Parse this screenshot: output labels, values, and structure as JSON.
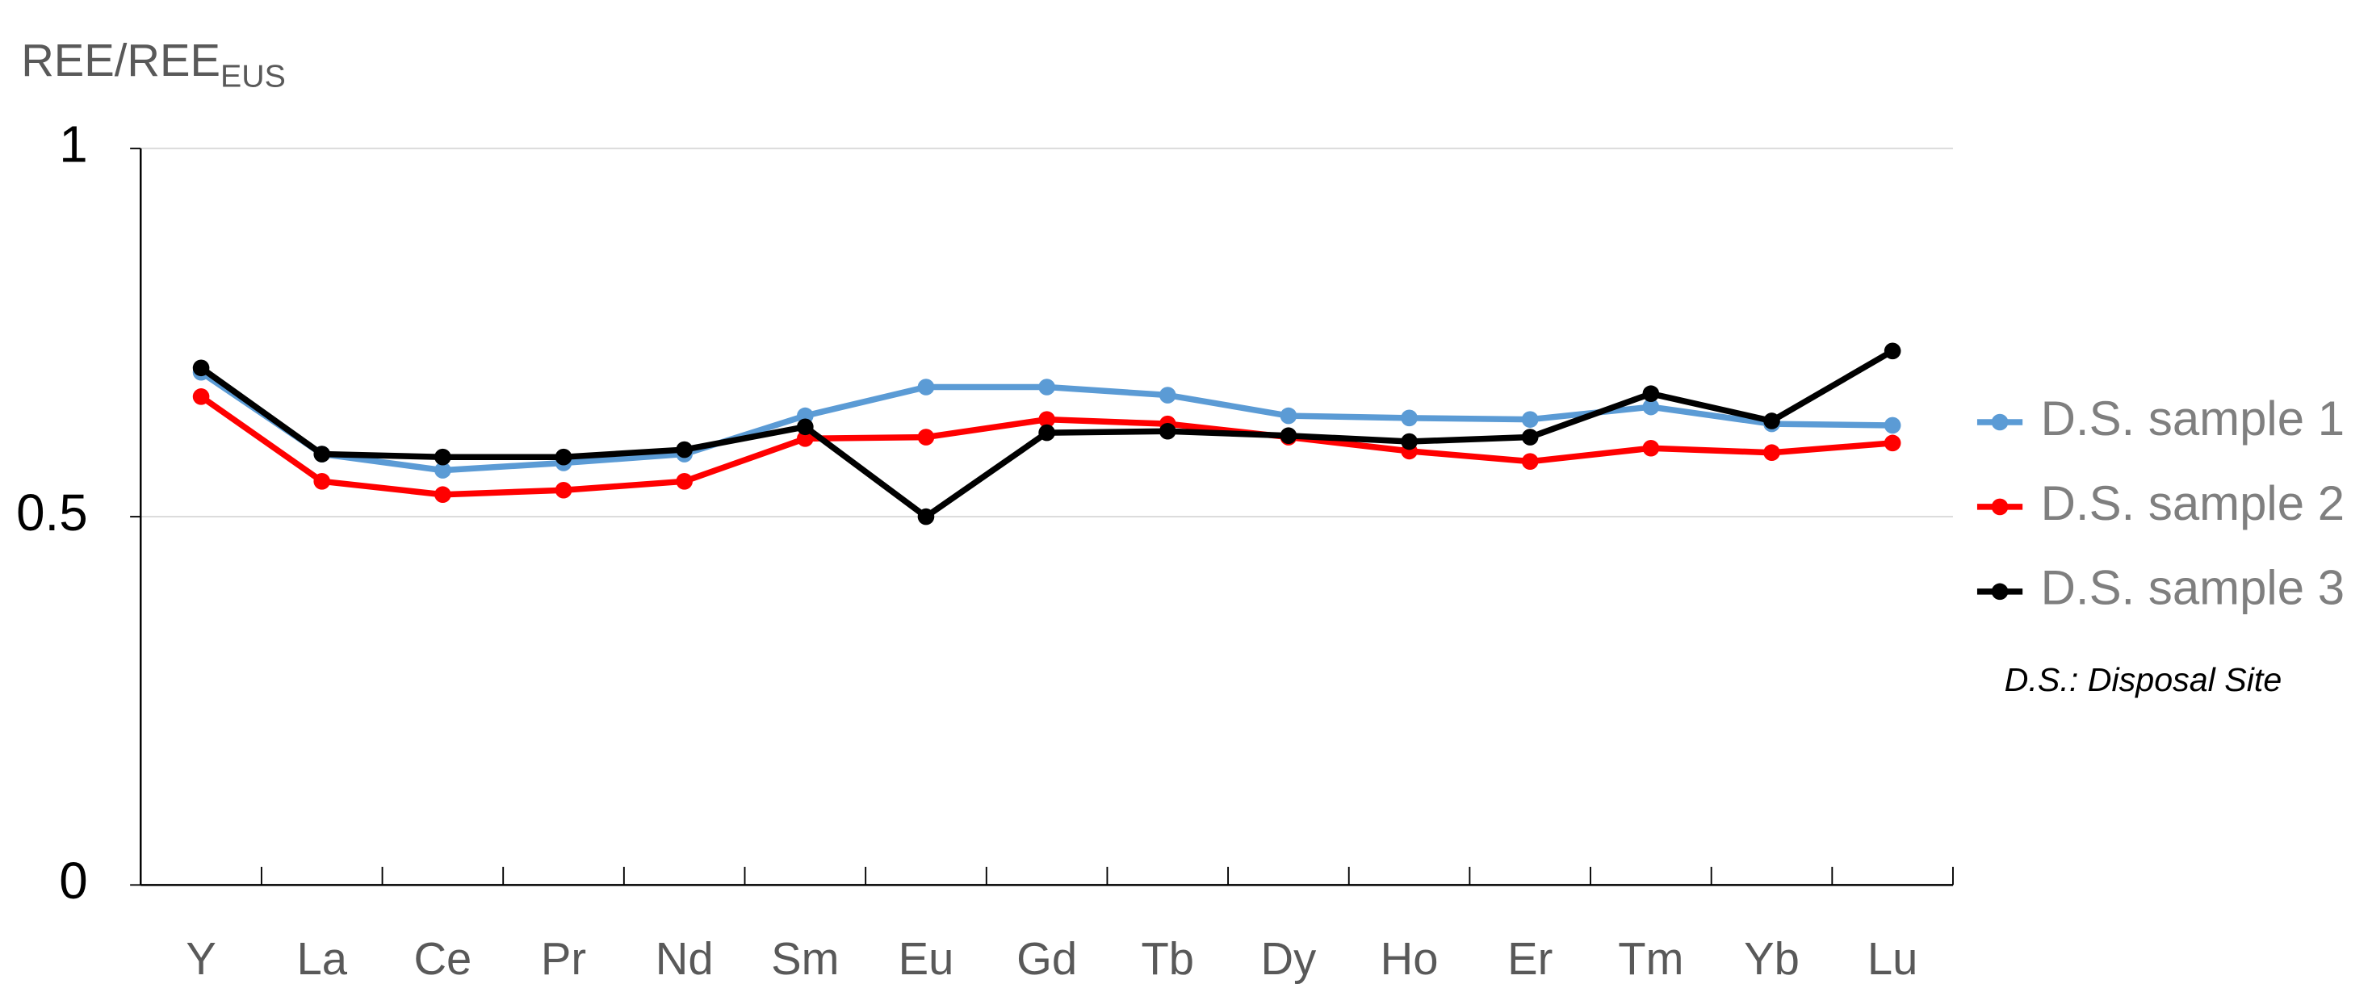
{
  "chart_data": {
    "type": "line",
    "ylabel": "REE/REE",
    "ylabel_subscript": "EUS",
    "annotation": "D.S.: Disposal Site",
    "categories": [
      "Y",
      "La",
      "Ce",
      "Pr",
      "Nd",
      "Sm",
      "Eu",
      "Gd",
      "Tb",
      "Dy",
      "Ho",
      "Er",
      "Tm",
      "Yb",
      "Lu"
    ],
    "series": [
      {
        "name": "D.S. sample 1",
        "color": "#5b9bd5",
        "values": [
          0.696,
          0.585,
          0.563,
          0.573,
          0.585,
          0.637,
          0.676,
          0.676,
          0.665,
          0.637,
          0.634,
          0.632,
          0.649,
          0.626,
          0.624
        ]
      },
      {
        "name": "D.S. sample 2",
        "color": "#ff0000",
        "values": [
          0.663,
          0.548,
          0.53,
          0.536,
          0.548,
          0.606,
          0.608,
          0.632,
          0.626,
          0.608,
          0.589,
          0.575,
          0.593,
          0.587,
          0.6
        ]
      },
      {
        "name": "D.S. sample 3",
        "color": "#000000",
        "values": [
          0.702,
          0.585,
          0.581,
          0.581,
          0.591,
          0.622,
          0.5,
          0.614,
          0.616,
          0.61,
          0.602,
          0.608,
          0.667,
          0.63,
          0.725
        ]
      }
    ],
    "ylim": [
      0,
      1
    ],
    "yticks": [
      0,
      0.5,
      1
    ],
    "grid": true,
    "legend": "right"
  }
}
